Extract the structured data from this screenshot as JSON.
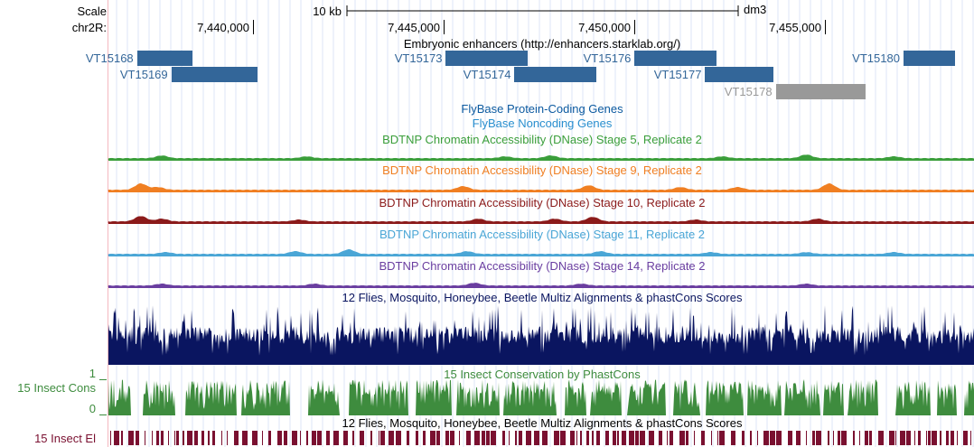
{
  "ruler": {
    "scale_label": "Scale",
    "chrom_label": "chr2R:",
    "scale_bar_label": "10 kb",
    "assembly": "dm3",
    "ticks": [
      {
        "label": "7,440,000",
        "pos": 7440000
      },
      {
        "label": "7,445,000",
        "pos": 7445000
      },
      {
        "label": "7,450,000",
        "pos": 7450000
      },
      {
        "label": "7,455,000",
        "pos": 7455000
      }
    ]
  },
  "tracks": {
    "enhancers": {
      "title": "Embryonic enhancers (http://enhancers.starklab.org/)",
      "features": [
        {
          "name": "VT15168",
          "start": 7436950,
          "end": 7438400,
          "row": 0,
          "color": "#336699",
          "name_color": "#336699"
        },
        {
          "name": "VT15169",
          "start": 7437850,
          "end": 7440100,
          "row": 1,
          "color": "#336699",
          "name_color": "#336699"
        },
        {
          "name": "VT15173",
          "start": 7445050,
          "end": 7447200,
          "row": 0,
          "color": "#336699",
          "name_color": "#336699"
        },
        {
          "name": "VT15174",
          "start": 7446850,
          "end": 7449000,
          "row": 1,
          "color": "#336699",
          "name_color": "#336699"
        },
        {
          "name": "VT15176",
          "start": 7450000,
          "end": 7452150,
          "row": 0,
          "color": "#336699",
          "name_color": "#336699"
        },
        {
          "name": "VT15177",
          "start": 7451850,
          "end": 7453650,
          "row": 1,
          "color": "#336699",
          "name_color": "#336699"
        },
        {
          "name": "VT15178",
          "start": 7453700,
          "end": 7456050,
          "row": 2,
          "color": "#999999",
          "name_color": "#999999"
        },
        {
          "name": "VT15180",
          "start": 7457050,
          "end": 7458400,
          "row": 0,
          "color": "#336699",
          "name_color": "#336699"
        }
      ]
    },
    "flybase_coding": {
      "title": "FlyBase Protein-Coding Genes",
      "color": "#0c5aa0"
    },
    "flybase_noncoding": {
      "title": "FlyBase Noncoding Genes",
      "color": "#2a8fcf"
    },
    "dnase": [
      {
        "title": "BDTNP Chromatin Accessibility (DNase) Stage 5, Replicate 2",
        "color": "#3a9e3a",
        "peaks": [
          [
            7437600,
            3
          ],
          [
            7441400,
            2
          ],
          [
            7446600,
            2
          ],
          [
            7447800,
            3
          ],
          [
            7452300,
            2
          ],
          [
            7454500,
            4
          ],
          [
            7456800,
            2
          ]
        ]
      },
      {
        "title": "BDTNP Chromatin Accessibility (DNase) Stage 9, Replicate 2",
        "color": "#f07f22",
        "peaks": [
          [
            7437050,
            7
          ],
          [
            7437500,
            3
          ],
          [
            7445500,
            4
          ],
          [
            7448800,
            5
          ],
          [
            7451200,
            3
          ],
          [
            7452700,
            3
          ],
          [
            7455100,
            7
          ]
        ]
      },
      {
        "title": "BDTNP Chromatin Accessibility (DNase) Stage 10, Replicate 2",
        "color": "#8b1a1a",
        "peaks": [
          [
            7437050,
            6
          ],
          [
            7437600,
            3
          ],
          [
            7441200,
            2
          ],
          [
            7445900,
            3
          ],
          [
            7447900,
            3
          ],
          [
            7448900,
            5
          ],
          [
            7451600,
            2
          ],
          [
            7454800,
            3
          ]
        ]
      },
      {
        "title": "BDTNP Chromatin Accessibility (DNase) Stage 11, Replicate 2",
        "color": "#4aa6d6",
        "peaks": [
          [
            7437700,
            2
          ],
          [
            7441100,
            3
          ],
          [
            7442500,
            5
          ],
          [
            7445600,
            3
          ],
          [
            7449100,
            3
          ],
          [
            7452000,
            2
          ],
          [
            7454500,
            2
          ],
          [
            7456800,
            2
          ]
        ]
      },
      {
        "title": "BDTNP Chromatin Accessibility (DNase) Stage 14, Replicate 2",
        "color": "#6a3ea0",
        "peaks": [
          [
            7437600,
            2
          ],
          [
            7441600,
            2
          ],
          [
            7445800,
            3
          ],
          [
            7448600,
            2
          ],
          [
            7454500,
            2
          ]
        ]
      }
    ],
    "multiz_top": {
      "title": "12 Flies, Mosquito, Honeybee, Beetle Multiz Alignments & phastCons Scores",
      "color": "#0a1560"
    },
    "conservation": {
      "title": "15 Insect Conservation by PhastCons",
      "left_label": "15 Insect Cons",
      "ymax_label": "1",
      "ymin_label": "0",
      "color": "#3e8c3e",
      "title_color": "#3e8c3e"
    },
    "multiz_bottom": {
      "title": "12 Flies, Mosquito, Honeybee, Beetle Multiz Alignments & phastCons Scores"
    },
    "elements": {
      "left_label": "15 Insect El",
      "color": "#7a1030"
    }
  }
}
